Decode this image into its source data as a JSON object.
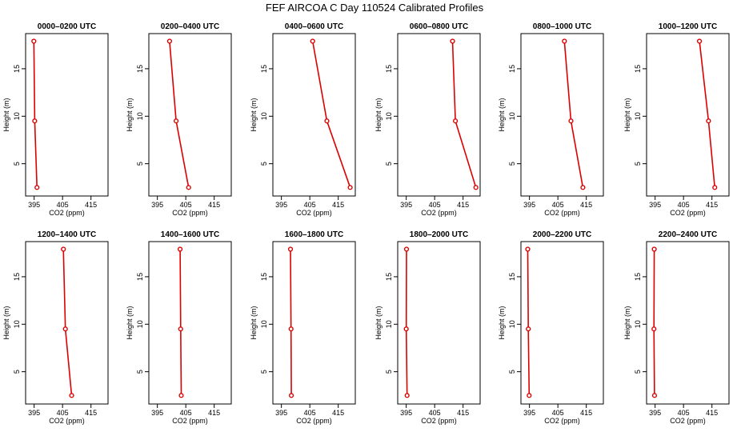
{
  "figure": {
    "title": "FEF AIRCOA C  Day 110524  Calibrated Profiles",
    "colors": {
      "line": "#dd0000",
      "frame": "#000000"
    }
  },
  "chart_data": {
    "type": "line",
    "xlabel": "CO2 (ppm)",
    "ylabel": "Height (m)",
    "xlim": [
      392,
      421
    ],
    "ylim": [
      1.6,
      18.7
    ],
    "xticks": [
      395,
      405,
      415
    ],
    "yticks": [
      5,
      10,
      15
    ],
    "panels": [
      {
        "title": "0000–0200 UTC",
        "points": [
          [
            396.0,
            2.5
          ],
          [
            395.2,
            9.5
          ],
          [
            394.9,
            17.9
          ]
        ]
      },
      {
        "title": "0200–0400 UTC",
        "points": [
          [
            406.0,
            2.5
          ],
          [
            401.6,
            9.5
          ],
          [
            399.3,
            17.9
          ]
        ]
      },
      {
        "title": "0400–0600 UTC",
        "points": [
          [
            419.2,
            2.5
          ],
          [
            411.0,
            9.5
          ],
          [
            406.0,
            17.9
          ]
        ]
      },
      {
        "title": "0600–0800 UTC",
        "points": [
          [
            419.5,
            2.5
          ],
          [
            412.3,
            9.5
          ],
          [
            411.3,
            17.9
          ]
        ]
      },
      {
        "title": "0800–1000 UTC",
        "points": [
          [
            413.8,
            2.5
          ],
          [
            409.6,
            9.5
          ],
          [
            407.3,
            17.9
          ]
        ]
      },
      {
        "title": "1000–1200 UTC",
        "points": [
          [
            416.0,
            2.5
          ],
          [
            413.8,
            9.5
          ],
          [
            410.6,
            17.9
          ]
        ]
      },
      {
        "title": "1200–1400 UTC",
        "points": [
          [
            408.2,
            2.5
          ],
          [
            406.0,
            9.5
          ],
          [
            405.3,
            17.9
          ]
        ]
      },
      {
        "title": "1400–1600 UTC",
        "points": [
          [
            403.4,
            2.5
          ],
          [
            403.2,
            9.5
          ],
          [
            403.0,
            17.9
          ]
        ]
      },
      {
        "title": "1600–1800 UTC",
        "points": [
          [
            398.5,
            2.5
          ],
          [
            398.4,
            9.5
          ],
          [
            398.2,
            17.9
          ]
        ]
      },
      {
        "title": "1800–2000 UTC",
        "points": [
          [
            395.3,
            2.5
          ],
          [
            395.0,
            9.5
          ],
          [
            395.1,
            17.9
          ]
        ]
      },
      {
        "title": "2000–2200 UTC",
        "points": [
          [
            394.9,
            2.5
          ],
          [
            394.6,
            9.5
          ],
          [
            394.4,
            17.9
          ]
        ]
      },
      {
        "title": "2200–2400 UTC",
        "points": [
          [
            394.8,
            2.5
          ],
          [
            394.6,
            9.5
          ],
          [
            394.7,
            17.9
          ]
        ]
      }
    ]
  }
}
